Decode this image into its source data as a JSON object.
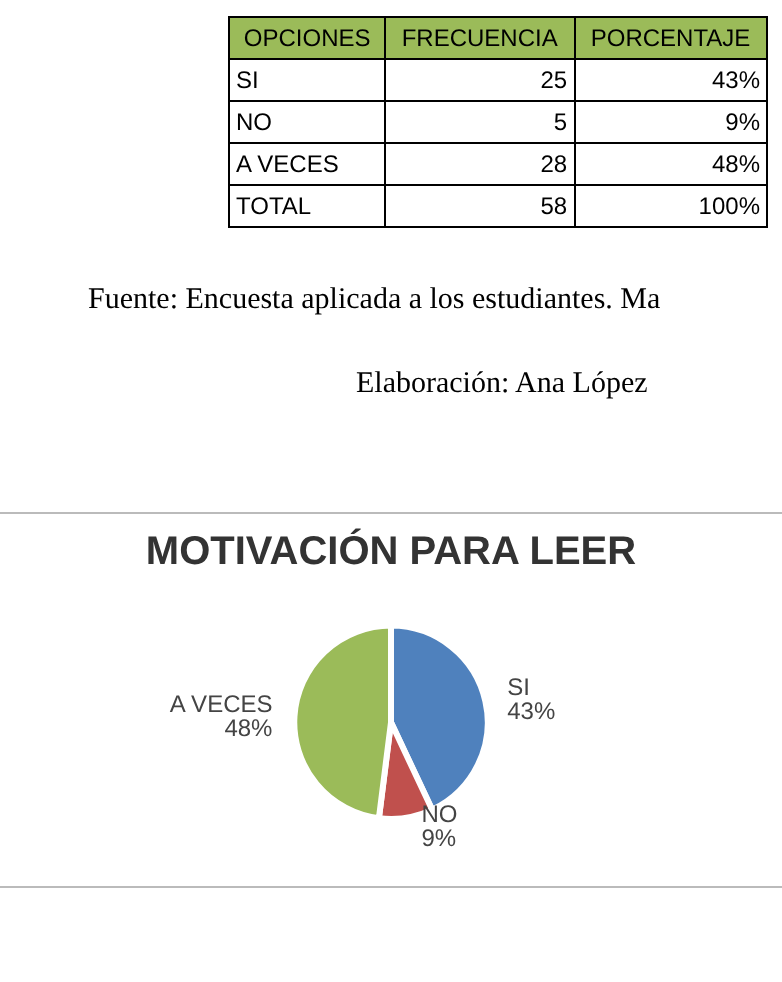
{
  "chart_data": {
    "type": "pie",
    "title": "MOTIVACIÓN PARA LEER",
    "categories": [
      "SI",
      "NO",
      "A VECES"
    ],
    "values": [
      43,
      9,
      48
    ],
    "value_labels": [
      "43%",
      "9%",
      "48%"
    ],
    "totals": [
      "58",
      "100%"
    ],
    "colors": [
      "#4f81bd",
      "#c0504d",
      "#9bbb59"
    ],
    "annotations": [
      "OPCIONES",
      "FRECUENCIA",
      "PORCENTAJE",
      "TOTAL",
      "Fuente: Encuesta aplicada a los estudiantes. Ma",
      "Elaboración: Ana López",
      "25",
      "5",
      "28"
    ]
  }
}
